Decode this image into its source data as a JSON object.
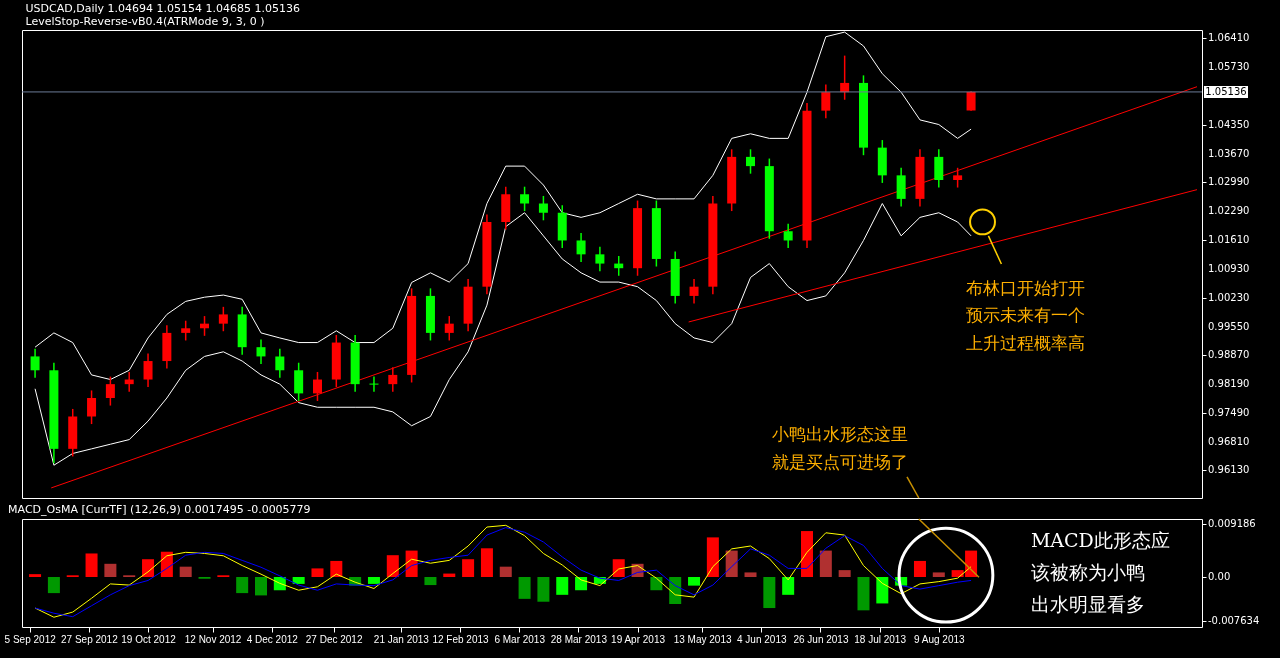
{
  "chart_data": [
    {
      "type": "candlestick",
      "title": "USDCAD,Daily  1.04694 1.05154 1.04685 1.05136",
      "subtitle": "LevelStop-Reverse-vB0.4(ATRMode 9, 3, 0 )",
      "x": [
        "2012-09-07",
        "2012-09-14",
        "2012-09-21",
        "2012-09-28",
        "2012-10-05",
        "2012-10-12",
        "2012-10-19",
        "2012-10-26",
        "2012-11-02",
        "2012-11-09",
        "2012-11-16",
        "2012-11-23",
        "2012-11-30",
        "2012-12-07",
        "2012-12-14",
        "2012-12-21",
        "2012-12-28",
        "2013-01-04",
        "2013-01-11",
        "2013-01-18",
        "2013-01-25",
        "2013-02-01",
        "2013-02-08",
        "2013-02-15",
        "2013-02-22",
        "2013-03-01",
        "2013-03-08",
        "2013-03-15",
        "2013-03-22",
        "2013-03-29",
        "2013-04-05",
        "2013-04-12",
        "2013-04-19",
        "2013-04-26",
        "2013-05-03",
        "2013-05-10",
        "2013-05-17",
        "2013-05-24",
        "2013-05-31",
        "2013-06-07",
        "2013-06-14",
        "2013-06-21",
        "2013-06-28",
        "2013-07-05",
        "2013-07-12",
        "2013-07-19",
        "2013-07-26",
        "2013-08-02",
        "2013-08-09",
        "2013-08-16",
        "2013-08-21"
      ],
      "ohlc": [
        [
          0.9884,
          0.9902,
          0.9833,
          0.9851
        ],
        [
          0.9851,
          0.9869,
          0.963,
          0.9664
        ],
        [
          0.9664,
          0.9759,
          0.9646,
          0.9741
        ],
        [
          0.9741,
          0.9803,
          0.9723,
          0.9785
        ],
        [
          0.9785,
          0.9836,
          0.9767,
          0.9818
        ],
        [
          0.9818,
          0.9847,
          0.98,
          0.9829
        ],
        [
          0.9829,
          0.9891,
          0.9811,
          0.9873
        ],
        [
          0.9873,
          0.9958,
          0.9855,
          0.994
        ],
        [
          0.994,
          0.9969,
          0.9922,
          0.9951
        ],
        [
          0.9951,
          0.998,
          0.9933,
          0.9962
        ],
        [
          0.9962,
          1.0002,
          0.9944,
          0.9984
        ],
        [
          0.9984,
          1.0002,
          0.9888,
          0.9906
        ],
        [
          0.9906,
          0.9924,
          0.9866,
          0.9884
        ],
        [
          0.9884,
          0.9902,
          0.9833,
          0.9851
        ],
        [
          0.9851,
          0.9869,
          0.9778,
          0.9796
        ],
        [
          0.9796,
          0.9847,
          0.9778,
          0.9829
        ],
        [
          0.9829,
          0.9935,
          0.9811,
          0.9917
        ],
        [
          0.9917,
          0.9935,
          0.98,
          0.9818
        ],
        [
          0.9818,
          0.9836,
          0.98,
          0.9818
        ],
        [
          0.9818,
          0.9858,
          0.98,
          0.984
        ],
        [
          0.984,
          1.0046,
          0.9822,
          1.0028
        ],
        [
          1.0028,
          1.0046,
          0.9922,
          0.994
        ],
        [
          0.994,
          0.998,
          0.9922,
          0.9962
        ],
        [
          0.9962,
          1.0068,
          0.9944,
          1.005
        ],
        [
          1.005,
          1.0222,
          1.0032,
          1.0204
        ],
        [
          1.0204,
          1.0288,
          1.0186,
          1.027
        ],
        [
          1.027,
          1.0288,
          1.023,
          1.0248
        ],
        [
          1.0248,
          1.0266,
          1.0208,
          1.0226
        ],
        [
          1.0226,
          1.0244,
          1.0142,
          1.016
        ],
        [
          1.016,
          1.0178,
          1.0109,
          1.0127
        ],
        [
          1.0127,
          1.0145,
          1.0087,
          1.0105
        ],
        [
          1.0105,
          1.0123,
          1.0076,
          1.0094
        ],
        [
          1.0094,
          1.0255,
          1.0076,
          1.0237
        ],
        [
          1.0237,
          1.0255,
          1.0098,
          1.0116
        ],
        [
          1.0116,
          1.0134,
          1.001,
          1.0028
        ],
        [
          1.0028,
          1.0068,
          1.001,
          1.005
        ],
        [
          1.005,
          1.0266,
          1.0032,
          1.0248
        ],
        [
          1.0248,
          1.0377,
          1.023,
          1.0359
        ],
        [
          1.0359,
          1.0377,
          1.0319,
          1.0337
        ],
        [
          1.0337,
          1.0355,
          1.0164,
          1.0182
        ],
        [
          1.0182,
          1.02,
          1.0142,
          1.016
        ],
        [
          1.016,
          1.0487,
          1.0142,
          1.0469
        ],
        [
          1.0469,
          1.0531,
          1.0451,
          1.0513
        ],
        [
          1.0513,
          1.06,
          1.0495,
          1.0535
        ],
        [
          1.0535,
          1.0553,
          1.0363,
          1.0381
        ],
        [
          1.0381,
          1.0399,
          1.0297,
          1.0315
        ],
        [
          1.0315,
          1.0333,
          1.0241,
          1.0259
        ],
        [
          1.0259,
          1.0377,
          1.0241,
          1.0359
        ],
        [
          1.0359,
          1.0377,
          1.0286,
          1.0304
        ],
        [
          1.0304,
          1.0333,
          1.0286,
          1.0315
        ],
        [
          1.04694,
          1.05154,
          1.04685,
          1.05136
        ]
      ],
      "colors": [
        "#00ff00",
        "#00ff00",
        "#ff0000",
        "#ff0000",
        "#ff0000",
        "#ff0000",
        "#ff0000",
        "#ff0000",
        "#ff0000",
        "#ff0000",
        "#ff0000",
        "#00ff00",
        "#00ff00",
        "#00ff00",
        "#00ff00",
        "#ff0000",
        "#ff0000",
        "#00ff00",
        "#00ff00",
        "#ff0000",
        "#ff0000",
        "#00ff00",
        "#ff0000",
        "#ff0000",
        "#ff0000",
        "#ff0000",
        "#00ff00",
        "#00ff00",
        "#00ff00",
        "#00ff00",
        "#00ff00",
        "#00ff00",
        "#ff0000",
        "#00ff00",
        "#00ff00",
        "#ff0000",
        "#ff0000",
        "#ff0000",
        "#00ff00",
        "#00ff00",
        "#00ff00",
        "#ff0000",
        "#ff0000",
        "#ff0000",
        "#00ff00",
        "#00ff00",
        "#00ff00",
        "#ff0000",
        "#00ff00",
        "#ff0000",
        "#ff0000"
      ],
      "series": [
        {
          "type": "line",
          "color": "#ffffff",
          "values": [
            0.9906,
            0.994,
            0.9917,
            0.984,
            0.9829,
            0.9851,
            0.9928,
            0.9984,
            1.0015,
            1.0025,
            1.003,
            1.002,
            0.994,
            0.9928,
            0.9917,
            0.9917,
            0.9945,
            0.9917,
            0.9917,
            0.9951,
            1.006,
            1.0083,
            1.0061,
            1.0105,
            1.0248,
            1.0337,
            1.0337,
            1.0292,
            1.0226,
            1.0215,
            1.0226,
            1.0248,
            1.027,
            1.0259,
            1.0259,
            1.0259,
            1.0315,
            1.0403,
            1.0414,
            1.0403,
            1.0403,
            1.0513,
            1.0645,
            1.0656,
            1.0623,
            1.0557,
            1.0513,
            1.0447,
            1.0436,
            1.0403,
            1.0425
          ]
        },
        {
          "type": "line",
          "color": "#ffffff",
          "values": [
            0.9807,
            0.9625,
            0.9653,
            0.9664,
            0.9675,
            0.9686,
            0.973,
            0.9785,
            0.9851,
            0.9884,
            0.9895,
            0.9873,
            0.984,
            0.9818,
            0.9774,
            0.9763,
            0.9763,
            0.9763,
            0.9763,
            0.9752,
            0.9719,
            0.9741,
            0.9829,
            0.9895,
            1.0006,
            1.0193,
            1.0226,
            1.0171,
            1.0116,
            1.0083,
            1.0061,
            1.0061,
            1.005,
            1.0017,
            0.9962,
            0.9928,
            0.9917,
            0.9962,
            1.0072,
            1.0105,
            1.005,
            1.0017,
            1.0028,
            1.0083,
            1.016,
            1.0248,
            1.0171,
            1.0215,
            1.0226,
            1.0204,
            1.0171
          ]
        },
        {
          "type": "line",
          "color": "#ff0000",
          "x": [
            "2012-09-13",
            "2013-11-13"
          ],
          "values": [
            0.9571,
            1.0526
          ]
        },
        {
          "type": "line",
          "color": "#ff0000",
          "x": [
            "2013-05-08",
            "2013-11-13"
          ],
          "values": [
            0.9966,
            1.0281
          ]
        }
      ],
      "xlim": [
        "2012-09-04",
        "2013-11-13"
      ],
      "ylim": [
        0.9547,
        1.0661
      ],
      "yticks": [
        {
          "value": 1.0641,
          "label": "1.06410"
        },
        {
          "value": 1.0573,
          "label": "1.05730"
        },
        {
          "value": 1.0435,
          "label": "1.04350"
        },
        {
          "value": 1.0367,
          "label": "1.03670"
        },
        {
          "value": 1.0299,
          "label": "1.02990"
        },
        {
          "value": 1.0229,
          "label": "1.02290"
        },
        {
          "value": 1.0161,
          "label": "1.01610"
        },
        {
          "value": 1.0093,
          "label": "1.00930"
        },
        {
          "value": 1.0023,
          "label": "1.00230"
        },
        {
          "value": 0.9955,
          "label": "0.99550"
        },
        {
          "value": 0.9887,
          "label": "0.98870"
        },
        {
          "value": 0.9819,
          "label": "0.98190"
        },
        {
          "value": 0.9749,
          "label": "0.97490"
        },
        {
          "value": 0.9681,
          "label": "0.96810"
        },
        {
          "value": 0.9613,
          "label": "0.96130"
        }
      ],
      "ref_lines": [
        {
          "axis": "y",
          "value": 1.05136,
          "label": "1.05136",
          "color": "#6c7c98"
        }
      ],
      "tick_labels": "y",
      "annotations": [
        "布林口开始打开",
        "预示未来有一个",
        "上升过程概率高",
        "小鸭出水形态这里",
        "就是买点可进场了"
      ]
    },
    {
      "type": "bar",
      "title": "MACD_OsMA [CurrTF] (12,26,9) 0.0017495 -0.0005779",
      "x": [
        "2012-09-07",
        "2012-09-14",
        "2012-09-21",
        "2012-09-28",
        "2012-10-05",
        "2012-10-12",
        "2012-10-19",
        "2012-10-26",
        "2012-11-02",
        "2012-11-09",
        "2012-11-16",
        "2012-11-23",
        "2012-11-30",
        "2012-12-07",
        "2012-12-14",
        "2012-12-21",
        "2012-12-28",
        "2013-01-04",
        "2013-01-11",
        "2013-01-18",
        "2013-01-25",
        "2013-02-01",
        "2013-02-08",
        "2013-02-15",
        "2013-02-22",
        "2013-03-01",
        "2013-03-08",
        "2013-03-15",
        "2013-03-22",
        "2013-03-29",
        "2013-04-05",
        "2013-04-12",
        "2013-04-19",
        "2013-04-26",
        "2013-05-03",
        "2013-05-10",
        "2013-05-17",
        "2013-05-24",
        "2013-05-31",
        "2013-06-07",
        "2013-06-14",
        "2013-06-21",
        "2013-06-28",
        "2013-07-05",
        "2013-07-12",
        "2013-07-19",
        "2013-07-26",
        "2013-08-02",
        "2013-08-09",
        "2013-08-16",
        "2013-08-21"
      ],
      "series": [
        {
          "colors": [
            "#ff0000",
            "#009900",
            "#ff0000",
            "#ff0000",
            "#b03030",
            "#b03030",
            "#ff0000",
            "#ff0000",
            "#b03030",
            "#009900",
            "#ff0000",
            "#009900",
            "#009900",
            "#00ff00",
            "#00ff00",
            "#ff0000",
            "#ff0000",
            "#009900",
            "#00ff00",
            "#ff0000",
            "#ff0000",
            "#009900",
            "#ff0000",
            "#ff0000",
            "#ff0000",
            "#b03030",
            "#009900",
            "#009900",
            "#00ff00",
            "#00ff00",
            "#00ff00",
            "#ff0000",
            "#b03030",
            "#009900",
            "#009900",
            "#00ff00",
            "#ff0000",
            "#b03030",
            "#b03030",
            "#009900",
            "#00ff00",
            "#ff0000",
            "#b03030",
            "#b03030",
            "#009900",
            "#00ff00",
            "#00ff00",
            "#ff0000",
            "#b03030",
            "#ff0000",
            "#ff0000"
          ],
          "values": [
            0.0005,
            -0.0028,
            0.0003,
            0.0041,
            0.0023,
            0.0003,
            0.0031,
            0.0044,
            0.0018,
            -0.0003,
            0.0003,
            -0.0028,
            -0.0032,
            -0.0023,
            -0.0012,
            0.0015,
            0.0028,
            -0.0015,
            -0.0012,
            0.0038,
            0.0046,
            -0.0014,
            0.0006,
            0.0031,
            0.005,
            0.0018,
            -0.0038,
            -0.0043,
            -0.0031,
            -0.0023,
            -0.0012,
            0.0031,
            0.0023,
            -0.0023,
            -0.0047,
            -0.0015,
            0.0069,
            0.0046,
            0.0008,
            -0.0054,
            -0.0031,
            0.008,
            0.0046,
            0.0012,
            -0.0058,
            -0.0046,
            -0.0015,
            0.0028,
            0.0008,
            0.0012,
            0.0046
          ]
        },
        {
          "type": "line",
          "color": "#ffff00",
          "values": [
            -0.0054,
            -0.007,
            -0.0061,
            -0.0037,
            -0.0012,
            -0.0014,
            0.0009,
            0.0037,
            0.0043,
            0.0041,
            0.0037,
            0.002,
            0.0005,
            -0.0011,
            -0.0023,
            -0.0017,
            0.0005,
            -0.0009,
            -0.002,
            0.0006,
            0.0031,
            0.0024,
            0.0029,
            0.0054,
            0.0087,
            0.009,
            0.0072,
            0.0041,
            0.0021,
            -0.0005,
            -0.0015,
            0.0014,
            0.002,
            -0.0002,
            -0.0031,
            -0.0035,
            0.0018,
            0.0049,
            0.0054,
            0.0032,
            -0.0005,
            0.0043,
            0.0077,
            0.0073,
            0.002,
            -0.0011,
            -0.0029,
            -0.0012,
            -0.0008,
            -0.0002,
            0.0018
          ]
        },
        {
          "type": "line",
          "color": "#0000ff",
          "values": [
            -0.0054,
            -0.0063,
            -0.0069,
            -0.005,
            -0.0031,
            -0.0015,
            -0.0006,
            0.0015,
            0.0038,
            0.0043,
            0.0041,
            0.0029,
            0.0017,
            0.0002,
            -0.0014,
            -0.0023,
            -0.0012,
            -0.0014,
            -0.0015,
            -0.0005,
            0.002,
            0.0029,
            0.0034,
            0.0038,
            0.0073,
            0.0086,
            0.0078,
            0.0061,
            0.0035,
            0.0012,
            -0.0002,
            -0.0006,
            0.0008,
            0.0012,
            -0.0015,
            -0.0031,
            -0.0014,
            0.0018,
            0.0049,
            0.0038,
            0.0015,
            0.0015,
            0.005,
            0.0072,
            0.0055,
            0.0015,
            -0.0015,
            -0.0021,
            -0.0015,
            -0.0009,
            -0.0006
          ]
        }
      ],
      "xlim": [
        "2012-09-04",
        "2013-11-13"
      ],
      "ylim": [
        -0.0087,
        0.0101
      ],
      "xticks": [
        {
          "value": "2012-09-05",
          "label": "5 Sep 2012"
        },
        {
          "value": "2012-09-27",
          "label": "27 Sep 2012"
        },
        {
          "value": "2012-10-19",
          "label": "19 Oct 2012"
        },
        {
          "value": "2012-11-12",
          "label": "12 Nov 2012"
        },
        {
          "value": "2012-12-04",
          "label": "4 Dec 2012"
        },
        {
          "value": "2012-12-27",
          "label": "27 Dec 2012"
        },
        {
          "value": "2013-01-21",
          "label": "21 Jan 2013"
        },
        {
          "value": "2013-02-12",
          "label": "12 Feb 2013"
        },
        {
          "value": "2013-03-06",
          "label": "6 Mar 2013"
        },
        {
          "value": "2013-03-28",
          "label": "28 Mar 2013"
        },
        {
          "value": "2013-04-19",
          "label": "19 Apr 2013"
        },
        {
          "value": "2013-05-13",
          "label": "13 May 2013"
        },
        {
          "value": "2013-06-04",
          "label": "4 Jun 2013"
        },
        {
          "value": "2013-06-26",
          "label": "26 Jun 2013"
        },
        {
          "value": "2013-07-18",
          "label": "18 Jul 2013"
        },
        {
          "value": "2013-08-09",
          "label": "9 Aug 2013"
        }
      ],
      "yticks": [
        0.009186,
        {
          "value": 0,
          "label": "0.00"
        },
        -0.007634
      ],
      "annotations": [
        "MACD此形态应",
        "该被称为小鸭",
        "出水明显看多"
      ]
    }
  ]
}
